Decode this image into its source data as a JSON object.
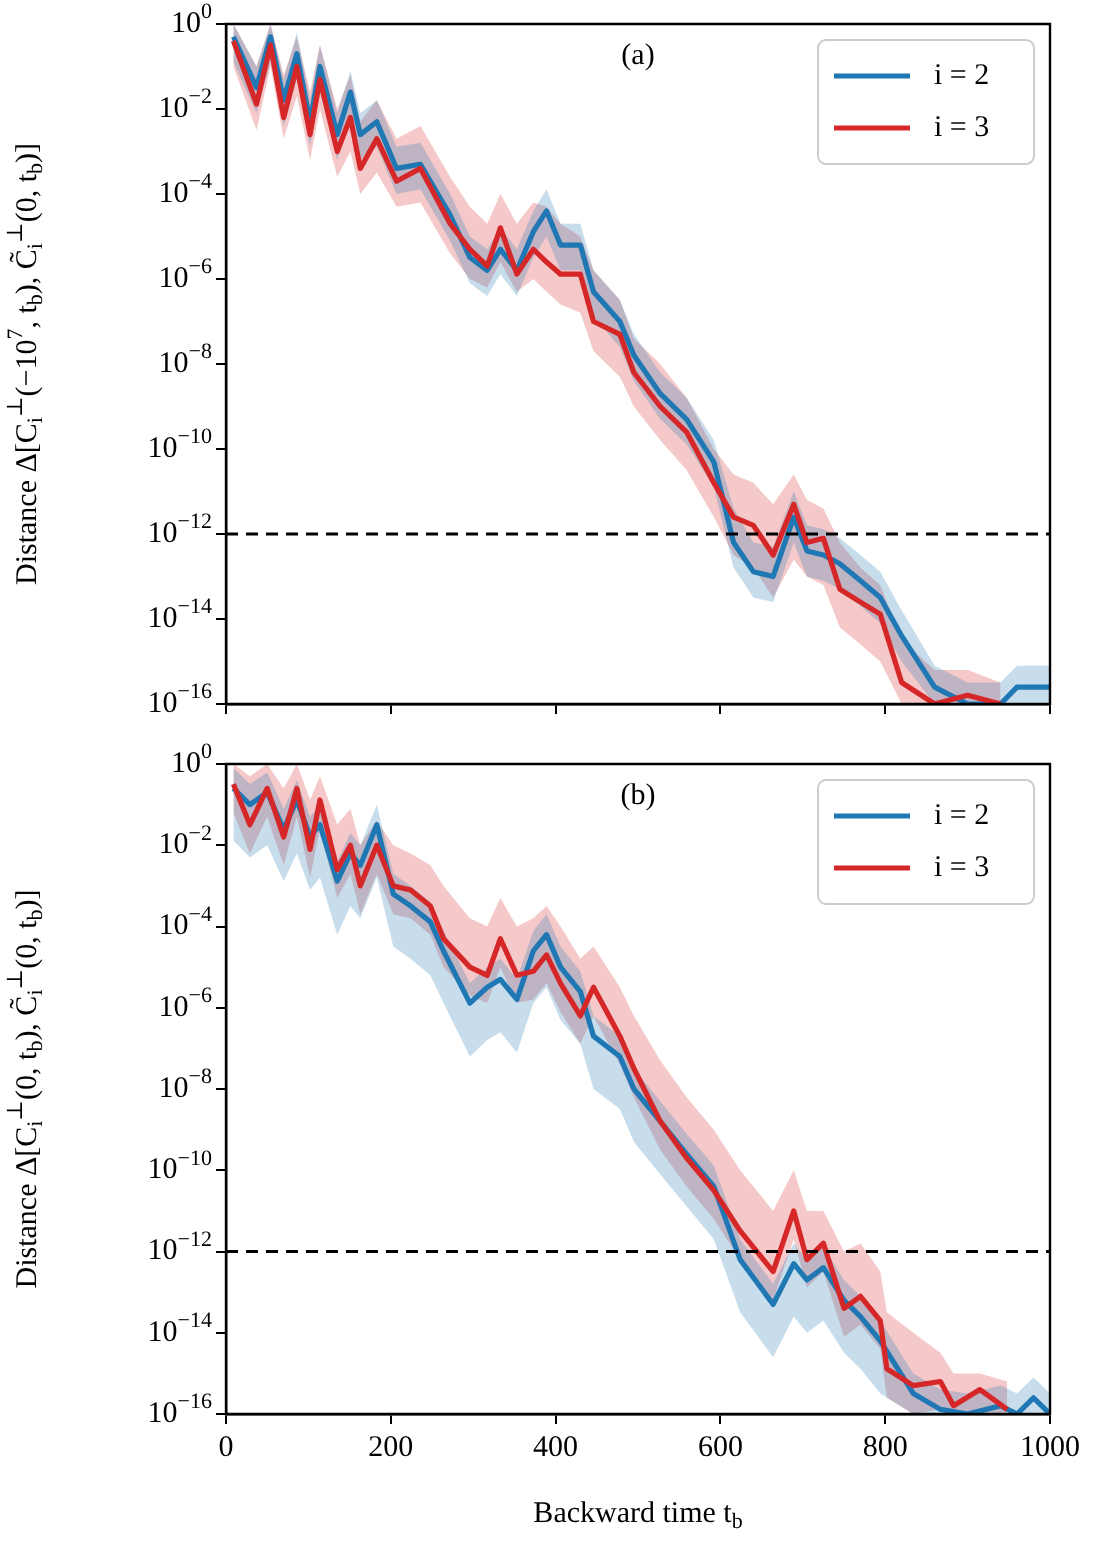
{
  "chart_data": [
    {
      "type": "line",
      "title": "(a)",
      "ylabel": "Distance Δ[C$_{i}$$^{⊥}$(−10$^{7}$, t$_{b}$), C̃$_{i}$$^{⊥}$(0, t$_{b}$)]",
      "log": "y",
      "legend": "top right",
      "tick_labels": "y",
      "xlim": [
        0,
        1000
      ],
      "xticks": [
        0,
        200,
        400,
        600,
        800,
        1000
      ],
      "ylim": [
        1e-16,
        1
      ],
      "yticks": [
        {
          "value": 1,
          "label": "10$^{0}$"
        },
        {
          "value": 0.01,
          "label": "10$^{−2}$"
        },
        {
          "value": 0.0001,
          "label": "10$^{−4}$"
        },
        {
          "value": 1e-06,
          "label": "10$^{−6}$"
        },
        {
          "value": 1e-08,
          "label": "10$^{−8}$"
        },
        {
          "value": 1e-10,
          "label": "10$^{−10}$"
        },
        {
          "value": 1e-12,
          "label": "10$^{−12}$"
        },
        {
          "value": 1e-14,
          "label": "10$^{−14}$"
        },
        {
          "value": 1e-16,
          "label": "10$^{−16}$"
        }
      ],
      "ref_lines": [
        {
          "axis": "y",
          "value": 1e-12,
          "color": "#000000",
          "line_style": "dashed"
        }
      ],
      "series": [
        {
          "name": "i = 2",
          "color": "#1f77b4",
          "x": [
            9,
            37,
            54,
            70,
            86,
            102,
            114,
            135,
            151,
            163,
            183,
            207,
            236,
            272,
            296,
            317,
            333,
            353,
            373,
            389,
            406,
            430,
            446,
            478,
            495,
            527,
            559,
            592,
            616,
            640,
            664,
            689,
            705,
            725,
            745,
            770,
            794,
            820,
            860,
            900,
            940,
            960,
            1000
          ],
          "values": [
            0.5,
            0.032,
            0.5,
            0.016,
            0.2,
            0.005,
            0.1,
            0.0025,
            0.025,
            0.0025,
            0.005,
            0.0004,
            0.0005,
            3.2e-05,
            3.2e-06,
            1.6e-06,
            5e-06,
            1.6e-06,
            1.3e-05,
            4e-05,
            6.3e-06,
            6.3e-06,
            5e-07,
            1e-07,
            1.6e-08,
            2e-09,
            5e-10,
            5e-11,
            6.3e-13,
            1.3e-13,
            1e-13,
            2.5e-12,
            4e-13,
            3.2e-13,
            2e-13,
            7.9e-14,
            3.2e-14,
            4e-15,
            2.5e-16,
            1e-16,
            1e-16,
            2.5e-16,
            2.5e-16
          ],
          "upper": [
            1,
            0.1,
            1,
            0.05,
            0.63,
            0.016,
            0.32,
            0.0079,
            0.079,
            0.0079,
            0.016,
            0.0013,
            0.0016,
            0.0001,
            1e-05,
            5e-06,
            1.6e-05,
            5e-06,
            4e-05,
            0.00013,
            2e-05,
            2e-05,
            1.6e-06,
            3.2e-07,
            5e-08,
            6.3e-09,
            1.6e-09,
            1.6e-10,
            4e-12,
            6.3e-13,
            5e-13,
            1e-11,
            1.6e-12,
            1.3e-12,
            7.9e-13,
            3.2e-13,
            1.3e-13,
            1.6e-14,
            7.9e-16,
            3.2e-16,
            3.2e-16,
            7.9e-16,
            7.9e-16
          ],
          "lower": [
            0.13,
            0.0079,
            0.13,
            0.004,
            0.05,
            0.0013,
            0.025,
            0.00063,
            0.0063,
            0.00063,
            0.0013,
            0.0001,
            0.00013,
            7.9e-06,
            7.9e-07,
            4e-07,
            1.3e-06,
            4e-07,
            3.2e-06,
            1e-05,
            1.6e-06,
            1.6e-06,
            1.3e-07,
            2.5e-08,
            4e-09,
            5e-10,
            1.3e-10,
            1.3e-11,
            1.6e-13,
            3.2e-14,
            2.5e-14,
            6.3e-13,
            1e-13,
            7.9e-14,
            5e-14,
            2e-14,
            7.9e-15,
            1e-15,
            1e-16,
            1e-16,
            1e-16,
            1e-16,
            1e-16
          ]
        },
        {
          "name": "i = 3",
          "color": "#d62728",
          "x": [
            9,
            37,
            54,
            70,
            86,
            102,
            114,
            135,
            151,
            163,
            183,
            207,
            236,
            272,
            296,
            317,
            333,
            353,
            373,
            389,
            406,
            430,
            446,
            478,
            495,
            527,
            559,
            592,
            616,
            640,
            664,
            689,
            705,
            725,
            745,
            770,
            794,
            820,
            860,
            900,
            940
          ],
          "values": [
            0.4,
            0.013,
            0.32,
            0.0063,
            0.1,
            0.0025,
            0.05,
            0.001,
            0.0063,
            0.0004,
            0.002,
            0.0002,
            0.0004,
            2e-05,
            5e-06,
            2e-06,
            1.6e-05,
            1.3e-06,
            5e-06,
            2.5e-06,
            1.3e-06,
            1.3e-06,
            1e-07,
            5e-08,
            6.3e-09,
            1e-09,
            2.5e-10,
            1.6e-11,
            2.5e-12,
            1.6e-12,
            3.2e-13,
            5e-12,
            6.3e-13,
            7.9e-13,
            5e-14,
            2.5e-14,
            1.3e-14,
            3.2e-16,
            1e-16,
            1.6e-16,
            1e-16
          ],
          "upper": [
            1,
            0.1,
            1,
            0.063,
            0.5,
            0.025,
            0.32,
            0.01,
            0.063,
            0.005,
            0.016,
            0.002,
            0.004,
            0.00025,
            5e-05,
            2e-05,
            0.0001,
            2e-05,
            6.3e-05,
            5e-05,
            2e-05,
            1e-05,
            1.6e-06,
            3.2e-07,
            4e-08,
            1e-08,
            1.6e-09,
            1e-10,
            2.5e-11,
            1.6e-11,
            5e-12,
            2.5e-11,
            6.3e-12,
            4e-12,
            6.3e-13,
            1.6e-13,
            6.3e-14,
            3.2e-15,
            6.3e-16,
            6.3e-16,
            3.2e-16
          ],
          "lower": [
            0.1,
            0.0032,
            0.1,
            0.002,
            0.02,
            0.00063,
            0.01,
            0.00025,
            0.001,
            0.0001,
            0.00032,
            5e-05,
            6.3e-05,
            4e-06,
            1e-06,
            6.3e-07,
            2.5e-06,
            5e-07,
            1e-06,
            5e-07,
            2.5e-07,
            1.6e-07,
            2e-08,
            5e-09,
            1e-09,
            1.6e-10,
            3.2e-11,
            2.5e-12,
            3.2e-13,
            1.6e-13,
            3.2e-14,
            2.5e-13,
            1e-13,
            6.3e-14,
            6.3e-15,
            2.5e-15,
            1e-15,
            1e-16,
            1e-16,
            1e-16,
            1e-16
          ]
        }
      ]
    },
    {
      "type": "line",
      "title": "(b)",
      "xlabel": "Backward time t$_{b}$",
      "ylabel": "Distance Δ[C$_{i}$$^{⊥}$(0, t$_{b}$), C̃$_{i}$$^{⊥}$(0, t$_{b}$)]",
      "log": "y",
      "legend": "top right",
      "xlim": [
        0,
        1000
      ],
      "xticks": [
        0,
        200,
        400,
        600,
        800,
        1000
      ],
      "ylim": [
        1e-16,
        1
      ],
      "yticks": [
        {
          "value": 1,
          "label": "10$^{0}$"
        },
        {
          "value": 0.01,
          "label": "10$^{−2}$"
        },
        {
          "value": 0.0001,
          "label": "10$^{−4}$"
        },
        {
          "value": 1e-06,
          "label": "10$^{−6}$"
        },
        {
          "value": 1e-08,
          "label": "10$^{−8}$"
        },
        {
          "value": 1e-10,
          "label": "10$^{−10}$"
        },
        {
          "value": 1e-12,
          "label": "10$^{−12}$"
        },
        {
          "value": 1e-14,
          "label": "10$^{−14}$"
        },
        {
          "value": 1e-16,
          "label": "10$^{−16}$"
        }
      ],
      "ref_lines": [
        {
          "axis": "y",
          "value": 1e-12,
          "color": "#000000",
          "line_style": "dashed"
        }
      ],
      "series": [
        {
          "name": "i = 2",
          "color": "#1f77b4",
          "x": [
            9,
            29,
            50,
            70,
            86,
            102,
            114,
            135,
            151,
            163,
            183,
            203,
            224,
            248,
            264,
            296,
            317,
            333,
            353,
            373,
            389,
            406,
            430,
            446,
            478,
            495,
            527,
            559,
            592,
            624,
            664,
            689,
            705,
            725,
            750,
            770,
            794,
            834,
            867,
            900,
            940,
            960,
            980,
            1000
          ],
          "values": [
            0.25,
            0.1,
            0.2,
            0.025,
            0.13,
            0.016,
            0.032,
            0.0013,
            0.0063,
            0.0032,
            0.032,
            0.00063,
            0.00032,
            0.00013,
            2.5e-05,
            1.3e-06,
            3.2e-06,
            5e-06,
            1.6e-06,
            2.5e-05,
            6.3e-05,
            1e-05,
            2.5e-06,
            2e-07,
            6.3e-08,
            1e-08,
            1.6e-09,
            2.5e-10,
            4e-11,
            6.3e-13,
            5e-14,
            5e-13,
            2e-13,
            4e-13,
            6.3e-14,
            2.5e-14,
            6.3e-15,
            3.2e-16,
            1.3e-16,
            1e-16,
            1.6e-16,
            1e-16,
            2.5e-16,
            1e-16
          ],
          "upper": [
            0.79,
            0.32,
            0.63,
            0.079,
            0.4,
            0.05,
            0.1,
            0.004,
            0.02,
            0.01,
            0.1,
            0.002,
            0.001,
            0.0004,
            7.9e-05,
            4e-06,
            1e-05,
            1.6e-05,
            5e-06,
            7.9e-05,
            0.0002,
            3.2e-05,
            7.9e-06,
            6.3e-07,
            2e-07,
            3.2e-08,
            5e-09,
            7.9e-10,
            1.3e-10,
            2e-12,
            1.6e-13,
            1.6e-12,
            6.3e-13,
            1.3e-12,
            2e-13,
            7.9e-14,
            2e-14,
            1e-15,
            4e-16,
            3.2e-16,
            5e-16,
            3.2e-16,
            7.9e-16,
            3.2e-16
          ],
          "lower": [
            0.013,
            0.005,
            0.01,
            0.0013,
            0.0063,
            0.00079,
            0.0016,
            6.3e-05,
            0.00032,
            0.00016,
            0.0016,
            3.2e-05,
            1.6e-05,
            6.3e-06,
            1.3e-06,
            6.3e-08,
            1.6e-07,
            2.5e-07,
            7.9e-08,
            1.3e-06,
            3.2e-06,
            5e-07,
            1.3e-07,
            1e-08,
            3.2e-09,
            5e-10,
            7.9e-11,
            1.3e-11,
            2e-12,
            3.2e-14,
            2.5e-15,
            2.5e-14,
            1e-14,
            2e-14,
            3.2e-15,
            1.3e-15,
            3.2e-16,
            1e-16,
            1e-16,
            1e-16,
            1e-16,
            1e-16,
            1e-16,
            1e-16
          ]
        },
        {
          "name": "i = 3",
          "color": "#d62728",
          "x": [
            9,
            29,
            50,
            70,
            86,
            102,
            114,
            135,
            151,
            163,
            183,
            203,
            224,
            248,
            264,
            296,
            317,
            333,
            353,
            373,
            389,
            406,
            430,
            446,
            478,
            495,
            527,
            559,
            592,
            624,
            664,
            689,
            705,
            725,
            750,
            770,
            794,
            802,
            834,
            867,
            883,
            915,
            948
          ],
          "values": [
            0.32,
            0.032,
            0.25,
            0.016,
            0.25,
            0.0079,
            0.13,
            0.0025,
            0.01,
            0.001,
            0.01,
            0.001,
            0.00079,
            0.00032,
            5e-05,
            1e-05,
            6.3e-06,
            5e-05,
            6.3e-06,
            7.9e-06,
            2e-05,
            4e-06,
            6.3e-07,
            3.2e-06,
            2e-07,
            3.2e-08,
            1.6e-09,
            2e-10,
            3.2e-11,
            3.2e-12,
            3.2e-13,
            1e-11,
            6.3e-13,
            1.6e-12,
            4e-14,
            7.9e-14,
            2e-14,
            1.3e-15,
            5e-16,
            6.3e-16,
            1.6e-16,
            4e-16,
            1.3e-16
          ],
          "upper": [
            1,
            0.5,
            1,
            0.25,
            1,
            0.13,
            0.5,
            0.032,
            0.079,
            0.01,
            0.04,
            0.01,
            0.0063,
            0.0032,
            0.001,
            0.00016,
            0.0001,
            0.0005,
            0.0001,
            0.00016,
            0.00032,
            0.0001,
            1.6e-05,
            3.2e-05,
            3.2e-06,
            6.3e-07,
            5e-08,
            6.3e-09,
            1e-09,
            1e-10,
            1e-11,
            1e-10,
            1e-11,
            1e-11,
            1e-12,
            1.6e-12,
            3.2e-13,
            3.2e-14,
            1e-14,
            3.2e-15,
            1e-15,
            1e-15,
            6.3e-16
          ],
          "lower": [
            0.063,
            0.0063,
            0.05,
            0.0032,
            0.05,
            0.0016,
            0.025,
            0.0005,
            0.002,
            0.0002,
            0.002,
            0.0002,
            0.00016,
            6.3e-05,
            1e-05,
            2e-06,
            1.3e-06,
            1e-05,
            1.3e-06,
            1.6e-06,
            4e-06,
            7.9e-07,
            1.3e-07,
            6.3e-07,
            4e-08,
            6.3e-09,
            3.2e-10,
            4e-11,
            6.3e-12,
            6.3e-13,
            6.3e-14,
            2e-12,
            1.3e-13,
            3.2e-13,
            7.9e-15,
            1.6e-14,
            4e-15,
            2.5e-16,
            1e-16,
            1.3e-16,
            1e-16,
            1e-16,
            1e-16
          ]
        }
      ]
    }
  ]
}
